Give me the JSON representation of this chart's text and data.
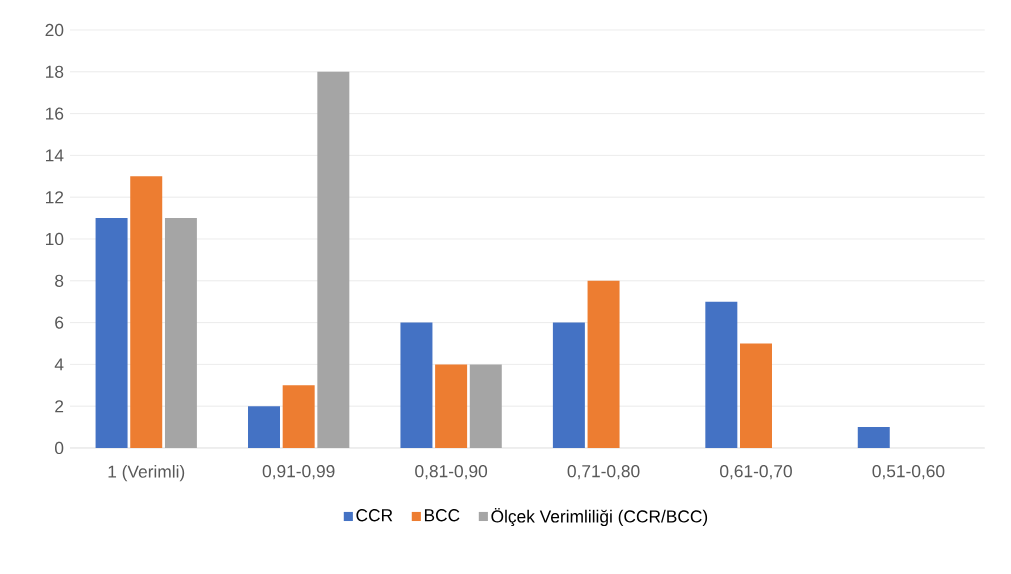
{
  "chart_data": {
    "type": "bar",
    "categories": [
      "1 (Verimli)",
      "0,91-0,99",
      "0,81-0,90",
      "0,71-0,80",
      "0,61-0,70",
      "0,51-0,60"
    ],
    "series": [
      {
        "name": "CCR",
        "color": "#4472c4",
        "values": [
          11,
          2,
          6,
          6,
          7,
          1
        ]
      },
      {
        "name": "BCC",
        "color": "#ed7d31",
        "values": [
          13,
          3,
          4,
          8,
          5,
          0
        ]
      },
      {
        "name": "Ölçek Verimliliği (CCR/BCC)",
        "color": "#a5a5a5",
        "values": [
          11,
          18,
          4,
          0,
          0,
          0
        ]
      }
    ],
    "ylim": [
      0,
      20
    ],
    "yticks": [
      0,
      2,
      4,
      6,
      8,
      10,
      12,
      14,
      16,
      18,
      20
    ],
    "grid": "y",
    "legend": "bottom"
  }
}
